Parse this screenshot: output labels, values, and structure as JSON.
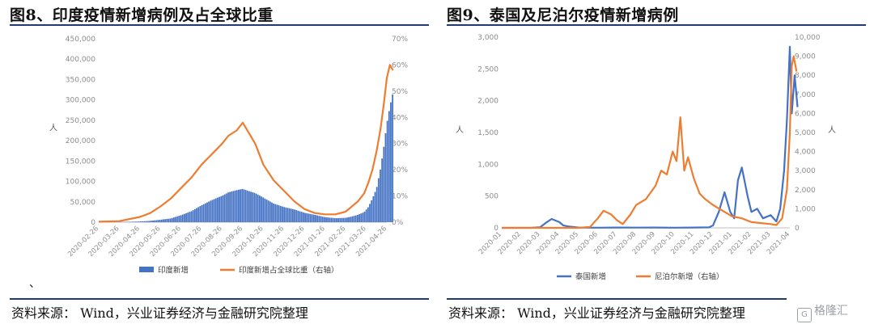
{
  "left": {
    "title": "图8、印度疫情新增病例及占全球比重",
    "source": "资料来源：  Wind，兴业证券经济与金融研究院整理",
    "note_mark": "、"
  },
  "right": {
    "title": "图9、泰国及尼泊尔疫情新增病例",
    "source": "资料来源：  Wind，兴业证券经济与金融研究院整理"
  },
  "watermark": {
    "icon": "gelonghui-logo-icon",
    "text": "格隆汇"
  },
  "colors": {
    "blue": "#4472c4",
    "orange": "#ed7d31",
    "rule": "#1f3b73",
    "axis_text": "#8c8c8c"
  },
  "chart_data": [
    {
      "type": "bar",
      "dual_axis": true,
      "ylabel": "人",
      "ylim": [
        0,
        450000
      ],
      "y_ticks": [
        "0",
        "50,000",
        "100,000",
        "150,000",
        "200,000",
        "250,000",
        "300,000",
        "350,000",
        "400,000",
        "450,000"
      ],
      "y2lim": [
        0,
        0.7
      ],
      "y2_ticks": [
        "0%",
        "10%",
        "20%",
        "30%",
        "40%",
        "50%",
        "60%",
        "70%"
      ],
      "x_ticks": [
        "2020-02-26",
        "2020-03-26",
        "2020-04-26",
        "2020-05-26",
        "2020-06-26",
        "2020-07-26",
        "2020-08-26",
        "2020-09-26",
        "2020-10-26",
        "2020-11-26",
        "2020-12-26",
        "2021-01-26",
        "2021-02-26",
        "2021-03-26",
        "2021-04-26"
      ],
      "legend_position": "bottom",
      "series": [
        {
          "name": "印度新增",
          "kind": "bar",
          "axis": "left",
          "color": "#4472c4",
          "x": [
            0,
            1,
            2,
            2.5,
            3,
            3.5,
            4,
            4.5,
            5,
            5.5,
            6,
            6.3,
            6.7,
            7,
            7.3,
            7.6,
            8,
            8.5,
            9,
            9.5,
            10,
            10.5,
            11,
            11.5,
            12,
            12.3,
            12.6,
            12.9,
            13.1,
            13.3,
            13.5,
            13.7,
            13.85,
            14,
            14.15,
            14.3
          ],
          "values": [
            0,
            150,
            1800,
            3500,
            6500,
            10000,
            19000,
            30000,
            47000,
            62000,
            75000,
            85000,
            92000,
            96000,
            90000,
            85000,
            72000,
            55000,
            45000,
            38000,
            28000,
            22000,
            15000,
            12000,
            13000,
            17000,
            22000,
            30000,
            45000,
            70000,
            100000,
            160000,
            220000,
            290000,
            340000,
            380000
          ]
        },
        {
          "name": "印度新增占全球比重（右轴）",
          "kind": "line",
          "axis": "right",
          "color": "#ed7d31",
          "x": [
            0,
            1,
            2,
            2.5,
            3,
            3.5,
            4,
            4.5,
            5,
            5.5,
            6,
            6.3,
            6.7,
            7,
            7.3,
            7.6,
            8,
            8.5,
            9,
            9.5,
            10,
            10.5,
            11,
            11.5,
            12,
            12.3,
            12.6,
            12.9,
            13.1,
            13.3,
            13.5,
            13.7,
            13.85,
            14,
            14.15,
            14.3
          ],
          "values": [
            0.002,
            0.004,
            0.02,
            0.035,
            0.06,
            0.09,
            0.13,
            0.17,
            0.22,
            0.26,
            0.3,
            0.33,
            0.35,
            0.38,
            0.34,
            0.3,
            0.22,
            0.16,
            0.12,
            0.08,
            0.05,
            0.035,
            0.03,
            0.03,
            0.04,
            0.06,
            0.08,
            0.11,
            0.15,
            0.2,
            0.27,
            0.36,
            0.45,
            0.55,
            0.6,
            0.58
          ]
        }
      ]
    },
    {
      "type": "line",
      "dual_axis": true,
      "ylabel": "人",
      "y2label": "人",
      "ylim": [
        0,
        3000
      ],
      "y_ticks": [
        "0",
        "500",
        "1,000",
        "1,500",
        "2,000",
        "2,500",
        "3,000"
      ],
      "y2lim": [
        0,
        10000
      ],
      "y2_ticks": [
        "0",
        "1,000",
        "2,000",
        "3,000",
        "4,000",
        "5,000",
        "6,000",
        "7,000",
        "8,000",
        "9,000",
        "10,000"
      ],
      "x_ticks": [
        "2020-01",
        "2020-02",
        "2020-03",
        "2020-04",
        "2020-05",
        "2020-06",
        "2020-07",
        "2020-08",
        "2020-09",
        "2020-10",
        "2020-11",
        "2020-12",
        "2021-01",
        "2021-02",
        "2021-03",
        "2021-04"
      ],
      "legend_position": "bottom",
      "series": [
        {
          "name": "泰国新增",
          "axis": "left",
          "color": "#4472c4",
          "x": [
            0,
            1.5,
            2,
            2.3,
            2.6,
            3,
            3.2,
            3.5,
            4,
            5,
            6,
            7,
            8,
            9,
            10,
            10.8,
            11,
            11.3,
            11.6,
            11.9,
            12.1,
            12.3,
            12.5,
            12.8,
            13,
            13.3,
            13.6,
            14,
            14.3,
            14.5,
            14.7,
            14.85,
            15,
            15.1,
            15.25,
            15.4
          ],
          "values": [
            0,
            0,
            10,
            80,
            140,
            90,
            40,
            20,
            5,
            3,
            5,
            4,
            5,
            3,
            5,
            8,
            40,
            250,
            560,
            250,
            150,
            750,
            950,
            500,
            250,
            300,
            150,
            200,
            100,
            300,
            900,
            1700,
            2850,
            1800,
            2400,
            1900
          ]
        },
        {
          "name": "尼泊尔新增（右轴）",
          "axis": "right",
          "color": "#ed7d31",
          "x": [
            0,
            4,
            4.6,
            5,
            5.3,
            5.7,
            6,
            6.3,
            6.7,
            7,
            7.5,
            8,
            8.3,
            8.6,
            8.9,
            9.1,
            9.3,
            9.5,
            9.7,
            10,
            10.3,
            10.6,
            11,
            11.5,
            12,
            12.5,
            13,
            13.5,
            14,
            14.3,
            14.6,
            14.85,
            15,
            15.1,
            15.2,
            15.35
          ],
          "values": [
            0,
            0,
            50,
            500,
            900,
            700,
            400,
            200,
            700,
            1200,
            1500,
            2200,
            3000,
            2800,
            4000,
            3500,
            5800,
            3000,
            3700,
            2600,
            1800,
            1500,
            1200,
            900,
            600,
            500,
            300,
            250,
            200,
            150,
            500,
            2000,
            5000,
            8500,
            9000,
            8200
          ]
        }
      ]
    }
  ]
}
